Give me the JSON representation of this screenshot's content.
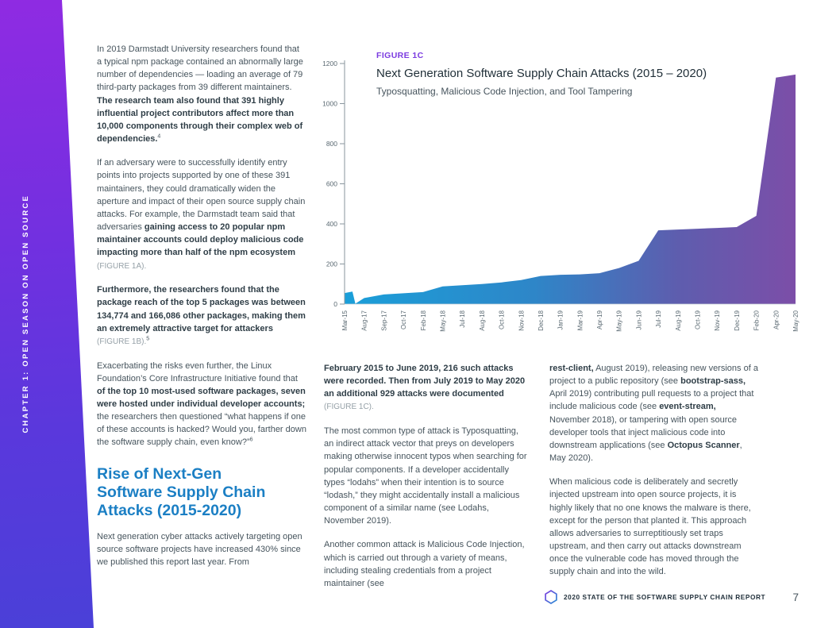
{
  "sidebar": {
    "label": "CHAPTER 1: OPEN SEASON ON OPEN SOURCE"
  },
  "figure": {
    "label": "FIGURE 1C",
    "title": "Next Generation Software Supply Chain Attacks (2015 – 2020)",
    "subtitle": "Typosquatting, Malicious Code Injection, and Tool Tampering"
  },
  "chart_data": {
    "type": "area",
    "title": "Next Generation Software Supply Chain Attacks (2015 – 2020)",
    "subtitle": "Typosquatting, Malicious Code Injection, and Tool Tampering",
    "categories": [
      "Mar-15",
      "Aug-17",
      "Sep-17",
      "Oct-17",
      "Feb-18",
      "May-18",
      "Jul-18",
      "Aug-18",
      "Oct-18",
      "Nov-18",
      "Dec-18",
      "Jan-19",
      "Mar-19",
      "Apr-19",
      "May-19",
      "Jun-19",
      "Jul-19",
      "Aug-19",
      "Oct-19",
      "Nov-19",
      "Dec-19",
      "Feb-20",
      "Apr-20",
      "May-20"
    ],
    "points": [
      [
        0,
        55
      ],
      [
        0.4,
        62
      ],
      [
        0.55,
        2
      ],
      [
        1,
        30
      ],
      [
        2,
        48
      ],
      [
        3,
        54
      ],
      [
        4,
        60
      ],
      [
        5,
        88
      ],
      [
        6,
        94
      ],
      [
        7,
        100
      ],
      [
        8,
        108
      ],
      [
        9,
        120
      ],
      [
        10,
        140
      ],
      [
        11,
        146
      ],
      [
        12,
        148
      ],
      [
        13,
        154
      ],
      [
        14,
        180
      ],
      [
        15,
        216
      ],
      [
        16,
        368
      ],
      [
        17,
        372
      ],
      [
        18,
        376
      ],
      [
        19,
        380
      ],
      [
        20,
        384
      ],
      [
        21,
        440
      ],
      [
        22,
        1130
      ],
      [
        23,
        1145
      ]
    ],
    "ylim": [
      0,
      1200
    ],
    "yticks": [
      0,
      200,
      400,
      600,
      800,
      1000,
      1200
    ],
    "x_tick_rotation": -90,
    "grid": false,
    "legend": "none",
    "gradient_stops": [
      {
        "offset": "0%",
        "color": "#1A9FD9"
      },
      {
        "offset": "42%",
        "color": "#2E86C8"
      },
      {
        "offset": "74%",
        "color": "#5E5DAE"
      },
      {
        "offset": "100%",
        "color": "#7C4EA8"
      }
    ]
  },
  "heading": {
    "lines": [
      "Rise of Next-Gen",
      "Software Supply Chain",
      "Attacks (2015-2020)"
    ]
  },
  "columns": {
    "left": {
      "p1": [
        {
          "t": "In 2019 Darmstadt University researchers found that a typical npm package contained an abnormally large number of dependencies — loading an average of 79 third-party packages from 39 different maintainers. "
        },
        {
          "t": "The research team also found that 391 highly influential project contributors affect more than 10,000 components through their complex web of dependencies.",
          "b": true
        },
        {
          "t": "4",
          "sup": true
        }
      ],
      "p2": [
        {
          "t": "If an adversary were to successfully identify entry points into projects supported by one of these 391 maintainers, they could dramatically widen the aperture and impact of their open source supply chain attacks. For example, the Darmstadt team said that adversaries "
        },
        {
          "t": "gaining access to 20 popular npm maintainer accounts could deploy malicious code impacting more than half of the npm ecosystem ",
          "b": true
        },
        {
          "t": "(FIGURE 1A).",
          "muted": true
        }
      ],
      "p3": [
        {
          "t": "Furthermore, the researchers found that the package reach of the top 5 packages was between 134,774 and 166,086 other packages, making them an extremely attractive target for attackers ",
          "b": true
        },
        {
          "t": "(FIGURE 1B).",
          "muted": true
        },
        {
          "t": "5",
          "sup": true
        }
      ],
      "p4": [
        {
          "t": "Exacerbating the risks even further, the Linux Foundation’s Core Infrastructure Initiative found that "
        },
        {
          "t": "of the top 10 most-used software packages, seven were hosted under individual developer accounts;",
          "b": true
        },
        {
          "t": " the researchers then questioned “what happens if one of these accounts is hacked? Would you, farther down the software supply chain, even know?”"
        },
        {
          "t": "6",
          "sup": true
        }
      ],
      "p5": [
        {
          "t": "Next generation cyber attacks actively targeting open source software projects have increased 430% since we published this report last year. From"
        }
      ]
    },
    "mid": {
      "p1": [
        {
          "t": "February 2015 to June 2019, 216 such attacks were recorded. Then from July 2019 to May 2020 an additional 929 attacks were documented ",
          "b": true
        },
        {
          "t": "(FIGURE 1C).",
          "muted": true
        }
      ],
      "p2": [
        {
          "t": "The most common type of attack is Typosquatting, an indirect attack vector that preys on developers making otherwise innocent typos when searching for popular components. If a developer accidentally types “lodahs” when their intention is to source “lodash,” they might accidentally install a malicious component of a similar name (see Lodahs, November 2019)."
        }
      ],
      "p3": [
        {
          "t": "Another common attack is Malicious Code Injection, which is carried out through a variety of means, including stealing credentials from a project maintainer (see"
        }
      ]
    },
    "right": {
      "p1": [
        {
          "t": "rest-client,",
          "b": true
        },
        {
          "t": " August 2019), releasing new versions of a project to a public repository (see "
        },
        {
          "t": "bootstrap-sass,",
          "b": true
        },
        {
          "t": " April 2019) contributing pull requests to a project that include malicious code (see "
        },
        {
          "t": "event-stream,",
          "b": true
        },
        {
          "t": " November 2018), or tampering with open source developer tools that inject malicious code into downstream applications (see "
        },
        {
          "t": "Octopus Scanner",
          "b": true
        },
        {
          "t": ", May 2020)."
        }
      ],
      "p2": [
        {
          "t": "When malicious code is deliberately and secretly injected upstream into open source projects, it is highly likely that no one knows the malware is there, except for the person that planted it. This approach allows adversaries to surreptitiously set traps upstream, and then carry out attacks downstream once the vulnerable code has moved through the supply chain and into the wild."
        }
      ]
    }
  },
  "footer": {
    "text": "2020 STATE OF THE SOFTWARE SUPPLY CHAIN REPORT",
    "page_number": "7"
  },
  "colors": {
    "sidebar_top": "#8F2BE2",
    "sidebar_bottom": "#4A40D8",
    "figure_label_purple": "#7B3BE0",
    "heading_blue": "#1B7FC4",
    "area_gradient_start": "#1A9FD9",
    "area_gradient_end": "#7C4EA8",
    "body_text": "#46545D"
  }
}
